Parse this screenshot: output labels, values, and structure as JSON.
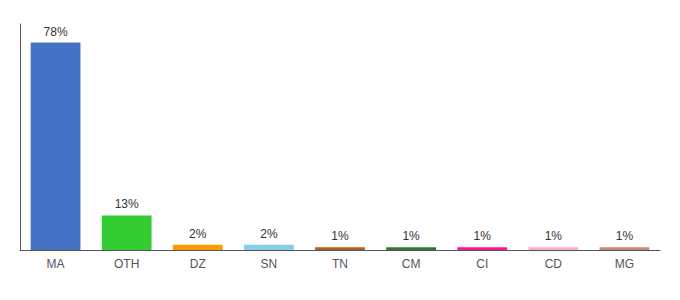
{
  "chart_data": {
    "type": "bar",
    "categories": [
      "MA",
      "OTH",
      "DZ",
      "SN",
      "TN",
      "CM",
      "CI",
      "CD",
      "MG"
    ],
    "values": [
      78,
      13,
      2,
      2,
      1,
      1,
      1,
      1,
      1
    ],
    "value_labels": [
      "78%",
      "13%",
      "2%",
      "2%",
      "1%",
      "1%",
      "1%",
      "1%",
      "1%"
    ],
    "colors": [
      "#4472c4",
      "#33cc33",
      "#ff9900",
      "#87ceeb",
      "#b85c20",
      "#2d7a2d",
      "#ff1493",
      "#ffaacc",
      "#cc8877"
    ],
    "ylim": [
      0,
      85
    ],
    "data_labels": true,
    "tick_labels": "x",
    "grid": false
  }
}
